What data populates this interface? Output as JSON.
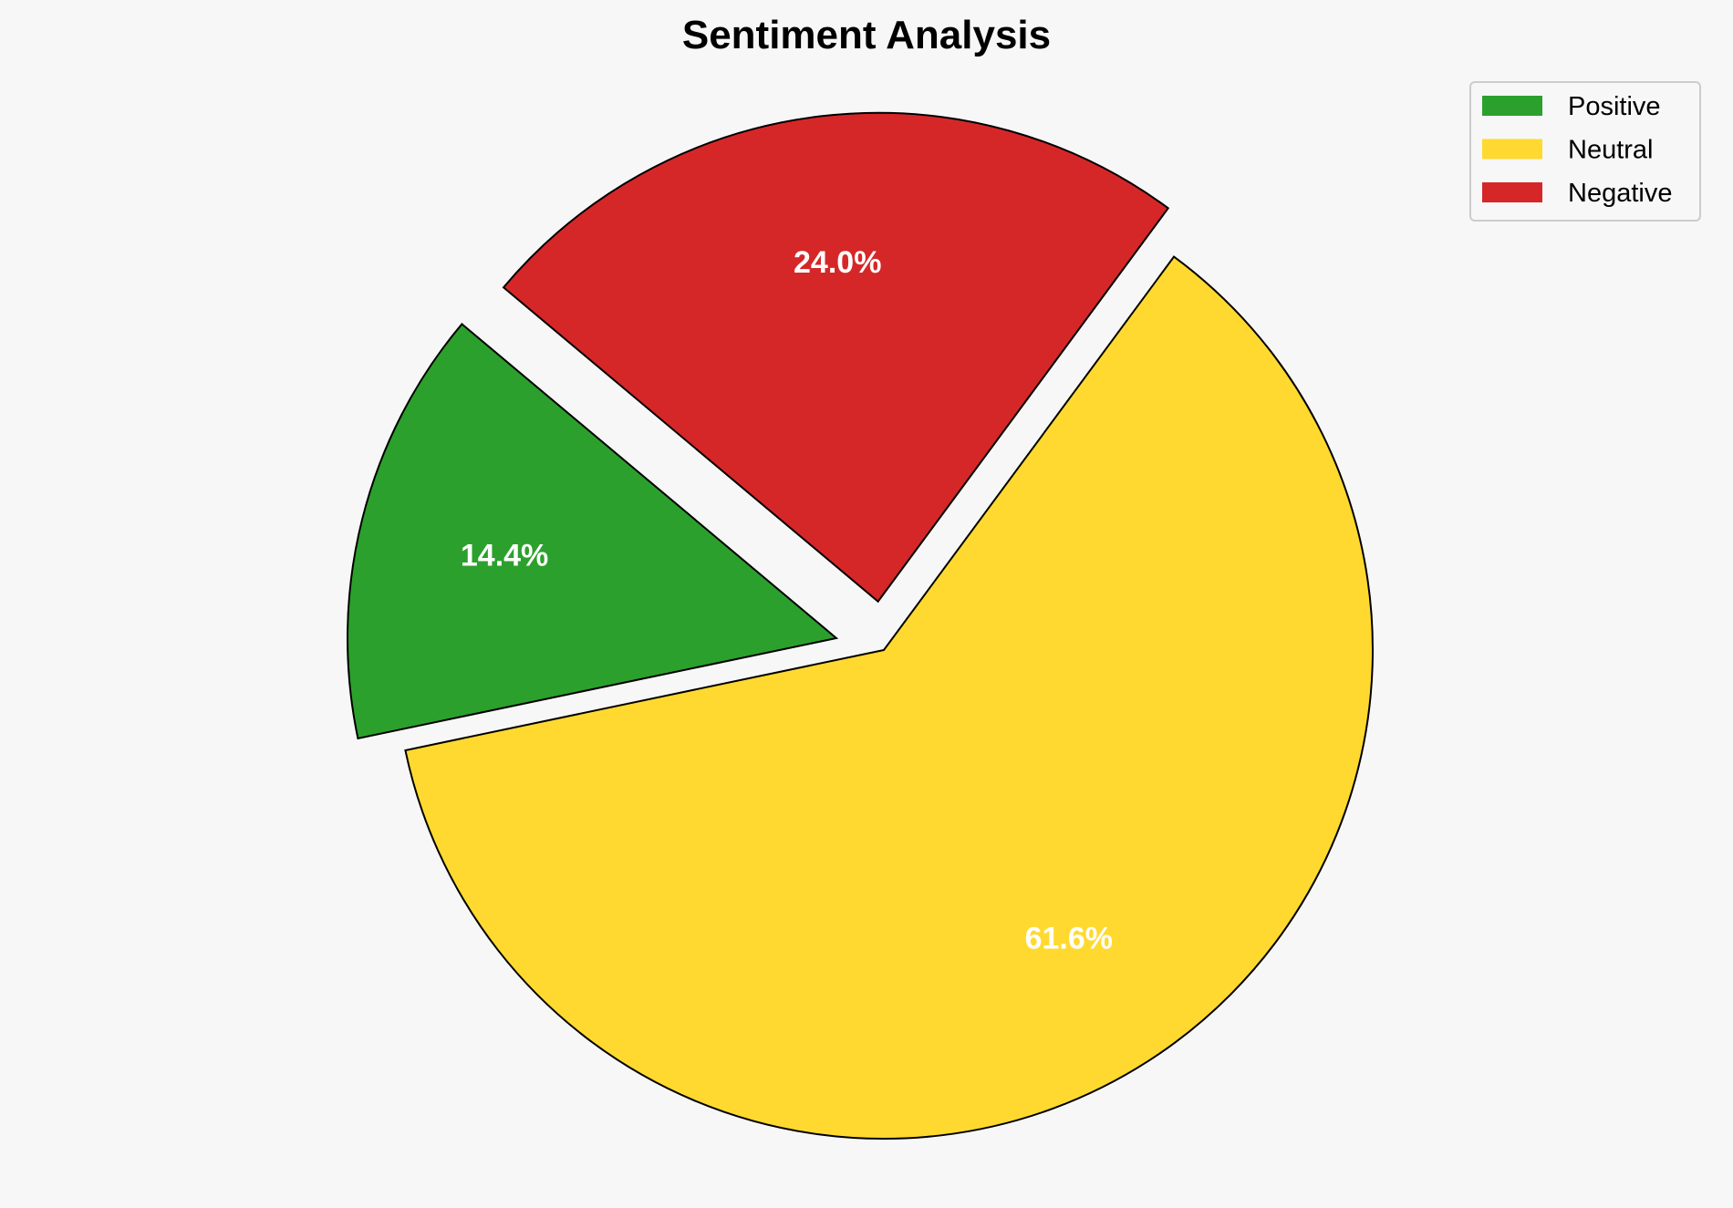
{
  "chart_data": {
    "type": "pie",
    "title": "Sentiment Analysis",
    "categories": [
      "Positive",
      "Neutral",
      "Negative"
    ],
    "values": [
      14.4,
      61.6,
      24.0
    ],
    "labels": [
      "14.4%",
      "61.6%",
      "24.0%"
    ],
    "colors": [
      "#2ca02c",
      "#ffd92f",
      "#d62728"
    ],
    "explode": [
      0.1,
      0,
      0.1
    ],
    "start_angle": 140,
    "direction": "counterclockwise",
    "legend_position": "top-right",
    "edge_color": "#000000",
    "label_color": "#ffffff",
    "background": "#f7f7f7"
  }
}
